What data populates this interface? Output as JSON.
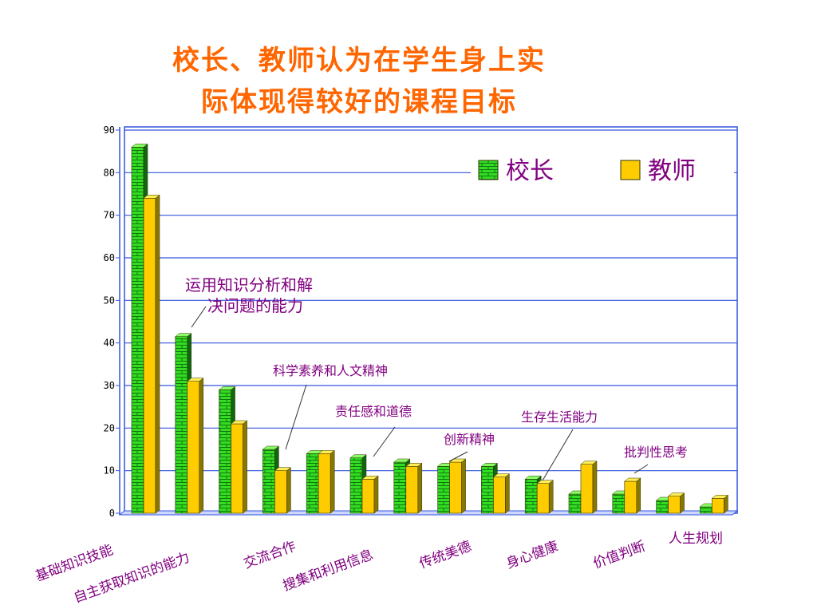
{
  "title_lines": [
    "校长、教师认为在学生身上实",
    "际体现得较好的课程目标"
  ],
  "chart_data": {
    "type": "bar",
    "title": "校长、教师认为在学生身上实际体现得较好的课程目标",
    "ylim": [
      0,
      90
    ],
    "yticks": [
      0,
      10,
      20,
      30,
      40,
      50,
      60,
      70,
      80,
      90
    ],
    "grid": true,
    "legend_position": "top-right",
    "categories": [
      "基础知识技能",
      "自主获取知识的能力",
      "运用知识分析和解决问题的能力",
      "交流合作",
      "科学素养和人文精神",
      "搜集和利用信息",
      "责任感和道德",
      "创新精神",
      "传统美德",
      "生存生活能力",
      "身心健康",
      "批判性思考",
      "价值判断",
      "人生规划"
    ],
    "axis_labels": [
      "基础知识技能",
      "自主获取知识的能力",
      "交流合作",
      "搜集和利用信息",
      "传统美德",
      "身心健康",
      "价值判断",
      "人生规划"
    ],
    "annotations": [
      {
        "lines": [
          "运用知识分析和解",
          "决问题的能力"
        ]
      },
      {
        "lines": [
          "科学素养和人文精神"
        ]
      },
      {
        "lines": [
          "责任感和道德"
        ]
      },
      {
        "lines": [
          "创新精神"
        ]
      },
      {
        "lines": [
          "生存生活能力"
        ]
      },
      {
        "lines": [
          "批判性思考"
        ]
      }
    ],
    "series": [
      {
        "name": "校长",
        "color": "#33dd22",
        "values": [
          86,
          41.5,
          29,
          15,
          14,
          13,
          12,
          11,
          11,
          8,
          4.5,
          4.5,
          3,
          1.5
        ]
      },
      {
        "name": "教师",
        "color": "#ffcc00",
        "values": [
          74,
          31,
          21,
          10,
          14,
          8,
          11,
          12,
          8.5,
          7,
          11.5,
          7.5,
          4,
          3.5
        ]
      }
    ]
  }
}
